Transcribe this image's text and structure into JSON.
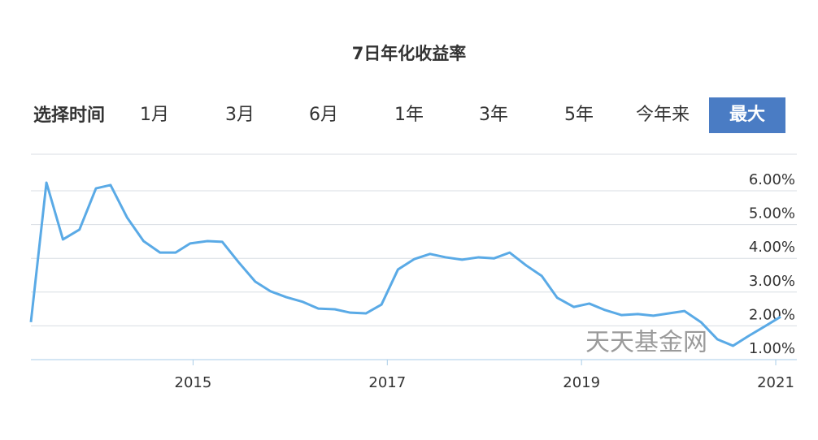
{
  "controls": {
    "label": "选择时间",
    "options": [
      "1月",
      "3月",
      "6月",
      "1年",
      "3年",
      "5年",
      "今年来",
      "最大"
    ],
    "active": "最大"
  },
  "watermark": "天天基金网",
  "chart_data": {
    "type": "line",
    "title": "7日年化收益率",
    "x": [
      2013.33,
      2013.49,
      2013.66,
      2013.83,
      2014.0,
      2014.15,
      2014.32,
      2014.49,
      2014.66,
      2014.82,
      2014.97,
      2015.15,
      2015.3,
      2015.47,
      2015.64,
      2015.8,
      2015.96,
      2016.13,
      2016.29,
      2016.46,
      2016.62,
      2016.78,
      2016.94,
      2017.11,
      2017.28,
      2017.44,
      2017.6,
      2017.77,
      2017.94,
      2018.1,
      2018.26,
      2018.43,
      2018.59,
      2018.75,
      2018.92,
      2019.08,
      2019.24,
      2019.41,
      2019.58,
      2019.74,
      2019.9,
      2020.06,
      2020.23,
      2020.4,
      2020.56,
      2020.72,
      2020.89,
      2021.05
    ],
    "series": [
      {
        "name": "7日年化收益率",
        "color": "#5aaae6",
        "values": [
          2.11,
          6.24,
          4.56,
          4.85,
          6.07,
          6.17,
          5.21,
          4.51,
          4.17,
          4.17,
          4.44,
          4.51,
          4.49,
          3.88,
          3.31,
          3.02,
          2.85,
          2.71,
          2.51,
          2.49,
          2.39,
          2.37,
          2.63,
          3.67,
          3.98,
          4.13,
          4.03,
          3.96,
          4.03,
          4.0,
          4.17,
          3.79,
          3.48,
          2.83,
          2.56,
          2.66,
          2.47,
          2.32,
          2.35,
          2.3,
          2.37,
          2.44,
          2.11,
          1.6,
          1.41,
          1.7,
          1.99,
          2.27
        ]
      }
    ],
    "xlim": [
      2013.33,
      2021.05
    ],
    "xticks": [
      2015,
      2017,
      2019,
      2021
    ],
    "ylim": [
      1,
      7
    ],
    "yticks": [
      {
        "value": 1,
        "label": "1.00%"
      },
      {
        "value": 2,
        "label": "2.00%"
      },
      {
        "value": 3,
        "label": "3.00%"
      },
      {
        "value": 4,
        "label": "4.00%"
      },
      {
        "value": 5,
        "label": "5.00%"
      },
      {
        "value": 6,
        "label": "6.00%"
      }
    ],
    "grid": true
  }
}
